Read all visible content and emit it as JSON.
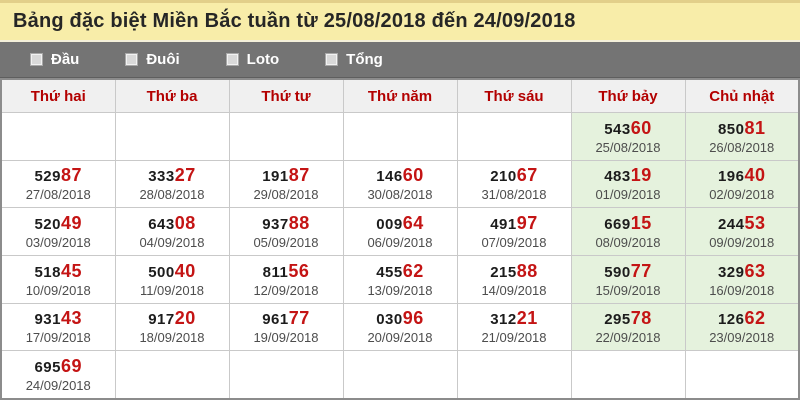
{
  "title": "Bảng đặc biệt Miền Bắc tuần từ 25/08/2018 đến 24/09/2018",
  "filters": [
    {
      "label": "Đầu",
      "checked": false
    },
    {
      "label": "Đuôi",
      "checked": false
    },
    {
      "label": "Loto",
      "checked": false
    },
    {
      "label": "Tổng",
      "checked": false
    }
  ],
  "table": {
    "headers": [
      "Thứ hai",
      "Thứ ba",
      "Thứ tư",
      "Thứ năm",
      "Thứ sáu",
      "Thứ bảy",
      "Chủ nhật"
    ],
    "weekend_columns": [
      5,
      6
    ],
    "rows": [
      [
        null,
        null,
        null,
        null,
        null,
        {
          "number": "54360",
          "date": "25/08/2018"
        },
        {
          "number": "85081",
          "date": "26/08/2018"
        }
      ],
      [
        {
          "number": "52987",
          "date": "27/08/2018"
        },
        {
          "number": "33327",
          "date": "28/08/2018"
        },
        {
          "number": "19187",
          "date": "29/08/2018"
        },
        {
          "number": "14660",
          "date": "30/08/2018"
        },
        {
          "number": "21067",
          "date": "31/08/2018"
        },
        {
          "number": "48319",
          "date": "01/09/2018"
        },
        {
          "number": "19640",
          "date": "02/09/2018"
        }
      ],
      [
        {
          "number": "52049",
          "date": "03/09/2018"
        },
        {
          "number": "64308",
          "date": "04/09/2018"
        },
        {
          "number": "93788",
          "date": "05/09/2018"
        },
        {
          "number": "00964",
          "date": "06/09/2018"
        },
        {
          "number": "49197",
          "date": "07/09/2018"
        },
        {
          "number": "66915",
          "date": "08/09/2018"
        },
        {
          "number": "24453",
          "date": "09/09/2018"
        }
      ],
      [
        {
          "number": "51845",
          "date": "10/09/2018"
        },
        {
          "number": "50040",
          "date": "11/09/2018"
        },
        {
          "number": "81156",
          "date": "12/09/2018"
        },
        {
          "number": "45562",
          "date": "13/09/2018"
        },
        {
          "number": "21588",
          "date": "14/09/2018"
        },
        {
          "number": "59077",
          "date": "15/09/2018"
        },
        {
          "number": "32963",
          "date": "16/09/2018"
        }
      ],
      [
        {
          "number": "93143",
          "date": "17/09/2018"
        },
        {
          "number": "91720",
          "date": "18/09/2018"
        },
        {
          "number": "96177",
          "date": "19/09/2018"
        },
        {
          "number": "03096",
          "date": "20/09/2018"
        },
        {
          "number": "31221",
          "date": "21/09/2018"
        },
        {
          "number": "29578",
          "date": "22/09/2018"
        },
        {
          "number": "12662",
          "date": "23/09/2018"
        }
      ],
      [
        {
          "number": "69569",
          "date": "24/09/2018"
        },
        null,
        null,
        null,
        null,
        null,
        null
      ]
    ]
  },
  "colors": {
    "title_bg": "#f8eda9",
    "filter_bar_bg": "#747474",
    "header_bg": "#f0f0f0",
    "header_text": "#b30000",
    "weekend_cell_bg": "#e5f2dd",
    "number_main": "#1c1c1c",
    "number_tail": "#c41414",
    "date_text": "#4d4d4d",
    "grid_border": "#c9c9c9"
  }
}
